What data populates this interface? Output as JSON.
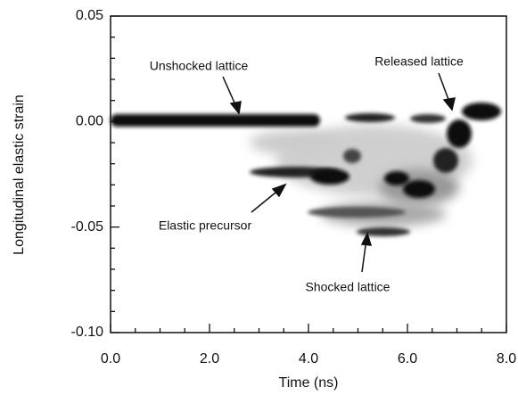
{
  "chart_data": {
    "type": "density",
    "xlabel": "Time (ns)",
    "ylabel": "Longitudinal elastic strain",
    "xlim": [
      0,
      8
    ],
    "xticks": [
      {
        "value": 0,
        "label": "0.0"
      },
      {
        "value": 2,
        "label": "2.0"
      },
      {
        "value": 4,
        "label": "4.0"
      },
      {
        "value": 6,
        "label": "6.0"
      },
      {
        "value": 8,
        "label": "8.0"
      }
    ],
    "ylim": [
      -0.1,
      0.05
    ],
    "yticks": [
      {
        "value": -0.1,
        "label": "-0.10"
      },
      {
        "value": -0.05,
        "label": "-0.05"
      },
      {
        "value": 0,
        "label": "0.00"
      },
      {
        "value": 0.05,
        "label": "0.05"
      }
    ],
    "annotations": [
      "Unshocked lattice",
      "Released lattice",
      "Elastic precursor",
      "Shocked lattice"
    ]
  }
}
